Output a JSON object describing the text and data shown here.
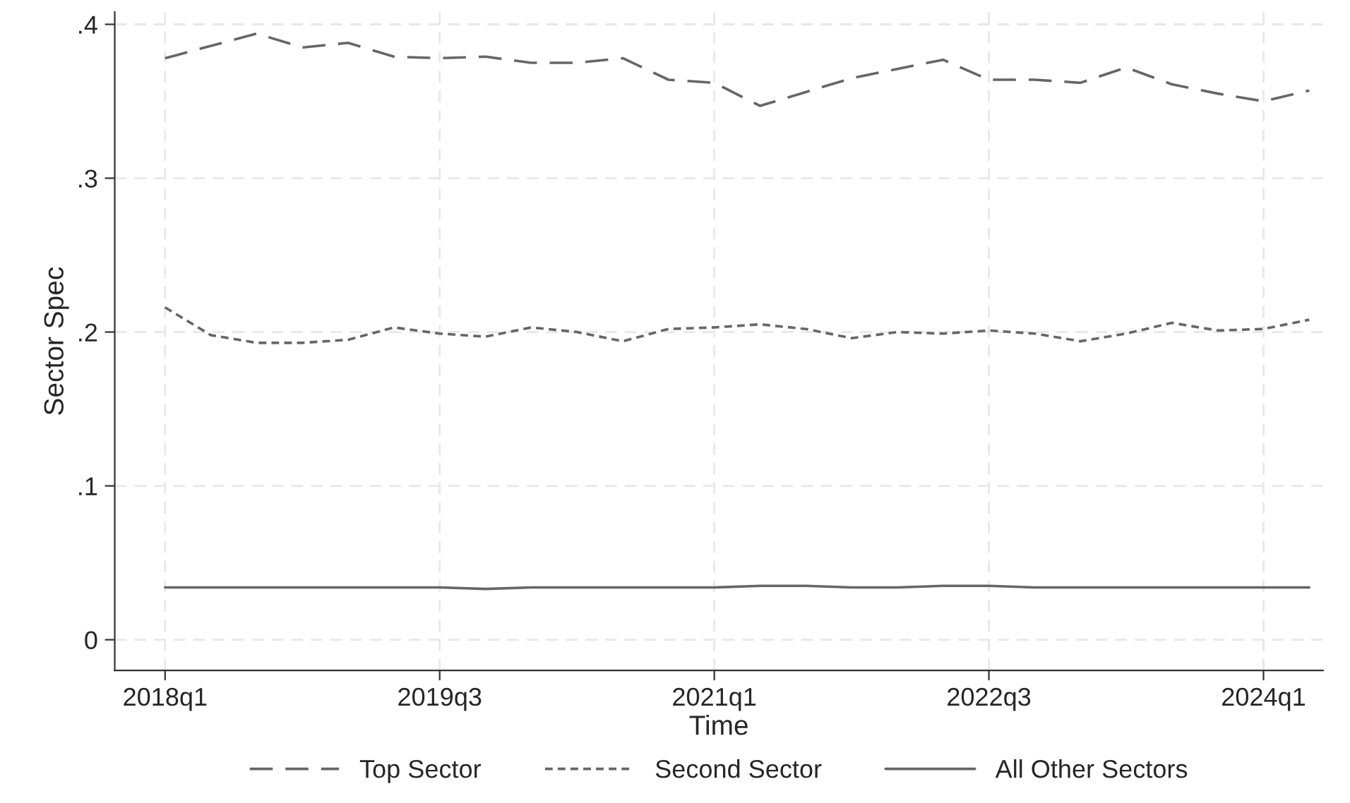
{
  "chart_data": {
    "type": "line",
    "xlabel": "Time",
    "ylabel": "Sector Spec",
    "categories": [
      "2018q1",
      null,
      null,
      null,
      null,
      null,
      "2019q3",
      null,
      null,
      null,
      null,
      null,
      "2021q1",
      null,
      null,
      null,
      null,
      null,
      "2022q3",
      null,
      null,
      null,
      null,
      null,
      "2024q1",
      null
    ],
    "series": [
      {
        "name": "Top Sector",
        "color": "#666666",
        "line_style": "dashed",
        "values": [
          0.378,
          0.386,
          0.394,
          0.385,
          0.388,
          0.379,
          0.378,
          0.379,
          0.375,
          0.375,
          0.378,
          0.364,
          0.362,
          0.347,
          0.356,
          0.365,
          0.371,
          0.377,
          0.364,
          0.364,
          0.362,
          0.372,
          0.361,
          0.355,
          0.35,
          0.357
        ]
      },
      {
        "name": "Second Sector",
        "color": "#666666",
        "line_style": "dotted",
        "values": [
          0.216,
          0.198,
          0.193,
          0.193,
          0.195,
          0.203,
          0.199,
          0.197,
          0.203,
          0.2,
          0.194,
          0.202,
          0.203,
          0.205,
          0.202,
          0.196,
          0.2,
          0.199,
          0.201,
          0.199,
          0.194,
          0.199,
          0.206,
          0.201,
          0.202,
          0.208
        ]
      },
      {
        "name": "All Other Sectors",
        "color": "#666666",
        "line_style": "solid",
        "values": [
          0.034,
          0.034,
          0.034,
          0.034,
          0.034,
          0.034,
          0.034,
          0.033,
          0.034,
          0.034,
          0.034,
          0.034,
          0.034,
          0.035,
          0.035,
          0.034,
          0.034,
          0.035,
          0.035,
          0.034,
          0.034,
          0.034,
          0.034,
          0.034,
          0.034,
          0.034
        ]
      }
    ],
    "ylim": [
      -0.02,
      0.408
    ],
    "yticks": [
      0,
      {
        "value": 0.1,
        "label": ".1"
      },
      {
        "value": 0.2,
        "label": ".2"
      },
      {
        "value": 0.3,
        "label": ".3"
      },
      {
        "value": 0.4,
        "label": ".4"
      }
    ],
    "grid": true,
    "legend": "bottom"
  }
}
